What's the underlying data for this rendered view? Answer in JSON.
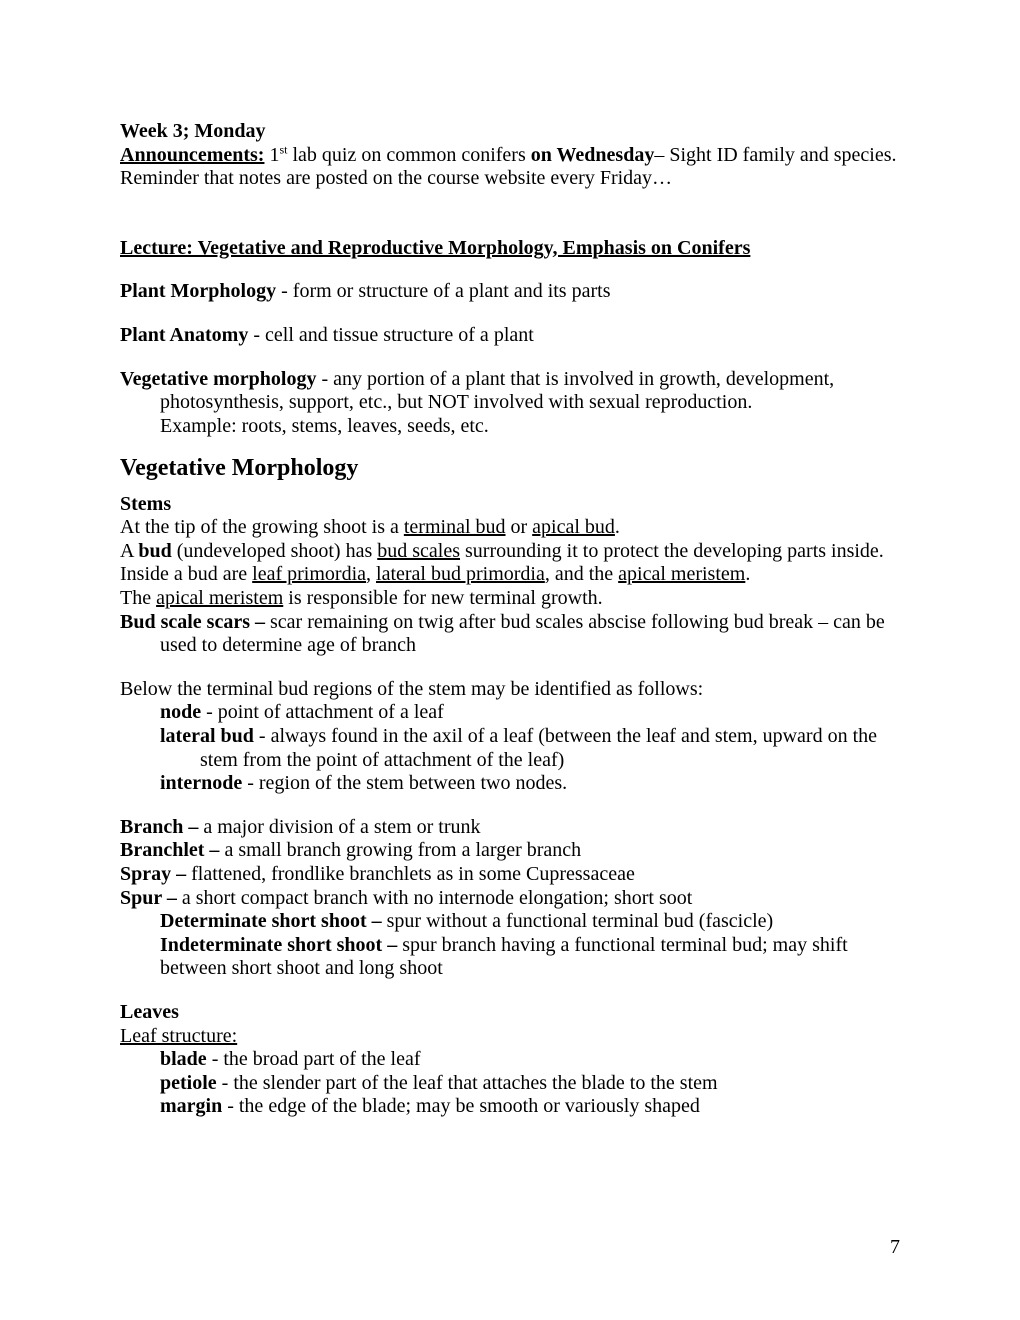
{
  "header": {
    "week_line": "Week 3; Monday",
    "announcements_label": "Announcements:",
    "announcements_text_1": " 1",
    "announcements_sup": "st",
    "announcements_text_2": " lab quiz on common conifers ",
    "announcements_bold_wed": "on Wednesday",
    "announcements_text_3": "– Sight ID family and species.",
    "reminder": "Reminder that notes are posted on the course website every Friday…"
  },
  "lecture_title": "Lecture: Vegetative and Reproductive Morphology, Emphasis on Conifers",
  "defs": {
    "plant_morph_label": "Plant Morphology",
    "plant_morph_text": " - form or structure of a plant and its parts",
    "plant_anat_label": "Plant Anatomy",
    "plant_anat_text": " - cell and tissue structure of a plant",
    "veg_morph_label": "Vegetative morphology",
    "veg_morph_text": " - any portion of a plant that is involved in growth, development,",
    "veg_morph_line2": "photosynthesis, support, etc., but NOT involved with sexual reproduction.",
    "veg_morph_line3": "Example:  roots, stems, leaves, seeds, etc."
  },
  "section_vm_title": "Vegetative Morphology",
  "stems": {
    "heading": "Stems",
    "l1a": "At the tip of the growing shoot is a ",
    "l1u1": "terminal bud",
    "l1b": " or ",
    "l1u2": "apical bud",
    "l1c": ".",
    "l2a": "A ",
    "l2b_bold": "bud",
    "l2c": " (undeveloped shoot) has ",
    "l2u": "bud scales",
    "l2d": " surrounding it to protect the developing parts inside.",
    "l3a": "Inside a bud are ",
    "l3u1": "leaf primordia",
    "l3b": ", ",
    "l3u2": "lateral bud primordia",
    "l3c": ", and the ",
    "l3u3": "apical meristem",
    "l3d": ".",
    "l4a": "The ",
    "l4u": "apical meristem",
    "l4b": " is responsible for new terminal growth.",
    "bss_label": "Bud scale scars –",
    "bss_text": " scar remaining on twig after bud scales abscise following bud break – can be",
    "bss_line2": "used to determine age of branch",
    "below_intro": "Below the terminal bud regions of the stem may be identified as follows:",
    "node_label": "node",
    "node_text": " - point of attachment of a leaf",
    "latbud_label": "lateral bud",
    "latbud_text": " - always found in the axil of a leaf (between the leaf and stem, upward on the",
    "latbud_line2": "stem from the point of attachment of the leaf)",
    "internode_label": "internode",
    "internode_text": " - region of the stem between two nodes.",
    "branch_label": "Branch –",
    "branch_text": " a major division of a stem or trunk",
    "branchlet_label": "Branchlet –",
    "branchlet_text": " a small branch growing from a larger branch",
    "spray_label": "Spray –",
    "spray_text": " flattened, frondlike branchlets as in some Cupressaceae",
    "spur_label": "Spur –",
    "spur_text": " a short compact branch with no internode elongation; short soot",
    "det_label": "Determinate short shoot –",
    "det_text": " spur without a functional terminal bud (fascicle)",
    "indet_label": "Indeterminate short shoot –",
    "indet_text": " spur branch having a functional terminal bud; may shift",
    "indet_line2": "between short shoot and long shoot"
  },
  "leaves": {
    "heading": "Leaves",
    "structure": "Leaf structure:",
    "blade_label": "blade",
    "blade_text": " - the broad part of the leaf",
    "petiole_label": "petiole",
    "petiole_text": " - the slender part of the leaf that attaches the blade to the stem",
    "margin_label": "margin",
    "margin_text": " - the edge of the blade; may be smooth or variously shaped"
  },
  "page_number": "7"
}
